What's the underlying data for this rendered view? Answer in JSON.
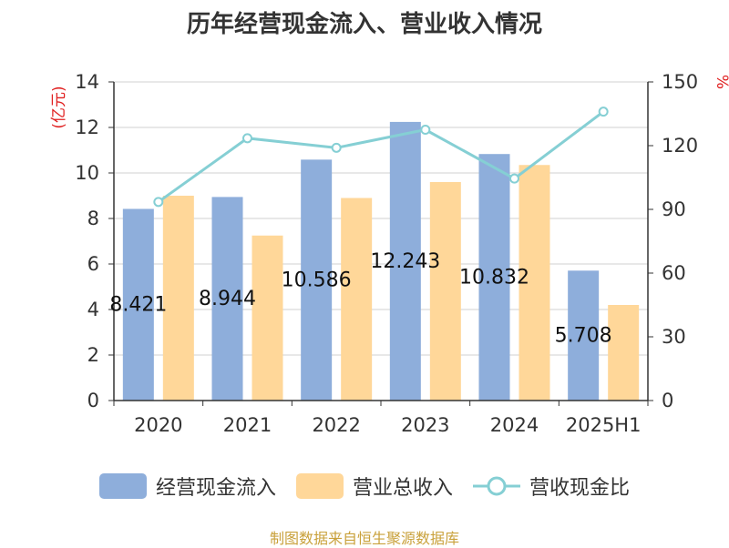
{
  "chart_data": {
    "type": "bar",
    "title": "历年经营现金流入、营业收入情况",
    "categories": [
      "2020",
      "2021",
      "2022",
      "2023",
      "2024",
      "2025H1"
    ],
    "y_left": {
      "label": "(亿元)",
      "ylim": [
        0,
        14
      ],
      "ticks": [
        0,
        2,
        4,
        6,
        8,
        10,
        12,
        14
      ]
    },
    "y_right": {
      "label": "%",
      "ylim": [
        0,
        150
      ],
      "ticks": [
        0,
        30,
        60,
        90,
        120,
        150
      ]
    },
    "series": [
      {
        "name": "经营现金流入",
        "type": "bar",
        "axis": "left",
        "color": "#8eaedb",
        "values": [
          8.421,
          8.944,
          10.586,
          12.243,
          10.832,
          5.708
        ],
        "labels": [
          "8.421",
          "8.944",
          "10.586",
          "12.243",
          "10.832",
          "5.708"
        ]
      },
      {
        "name": "营业总收入",
        "type": "bar",
        "axis": "left",
        "color": "#ffd799",
        "values": [
          9.0,
          7.25,
          8.9,
          9.6,
          10.35,
          4.2
        ]
      },
      {
        "name": "营收现金比",
        "type": "line",
        "axis": "right",
        "color": "#85cfd4",
        "values": [
          93.5,
          123.5,
          119.0,
          127.5,
          104.5,
          136.0
        ]
      }
    ],
    "grid": true,
    "legend_position": "bottom"
  },
  "source": "制图数据来自恒生聚源数据库"
}
